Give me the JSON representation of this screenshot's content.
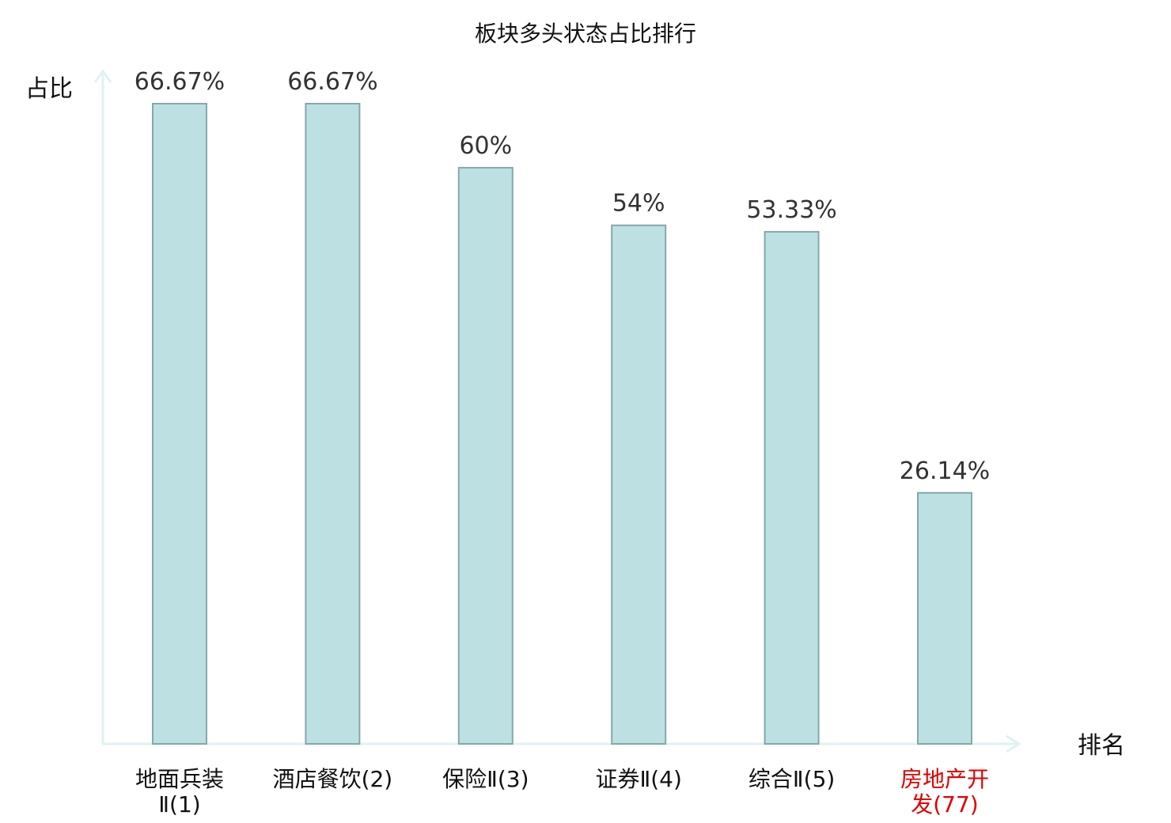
{
  "chart_data": {
    "type": "bar",
    "title": "板块多头状态占比排行",
    "xlabel": "排名",
    "ylabel": "占比",
    "categories": [
      {
        "lines": [
          "地面兵装",
          "Ⅱ(1)"
        ]
      },
      {
        "lines": [
          "酒店餐饮(2)"
        ]
      },
      {
        "lines": [
          "保险Ⅱ(3)"
        ]
      },
      {
        "lines": [
          "证券Ⅱ(4)"
        ]
      },
      {
        "lines": [
          "综合Ⅱ(5)"
        ]
      },
      {
        "lines": [
          "房地产开",
          "发(77)"
        ],
        "highlight": true
      }
    ],
    "values": [
      66.67,
      66.67,
      60,
      54,
      53.33,
      26.14
    ],
    "value_labels": [
      "66.67%",
      "66.67%",
      "60%",
      "54%",
      "53.33%",
      "26.14%"
    ],
    "ylim": [
      0,
      66.67
    ],
    "grid": false,
    "colors": {
      "bar_fill": "#bde0e3",
      "bar_stroke": "#86a8ab",
      "axis": "#e0f2f1",
      "label_text": "#111111",
      "highlight_text": "#e00000"
    }
  }
}
